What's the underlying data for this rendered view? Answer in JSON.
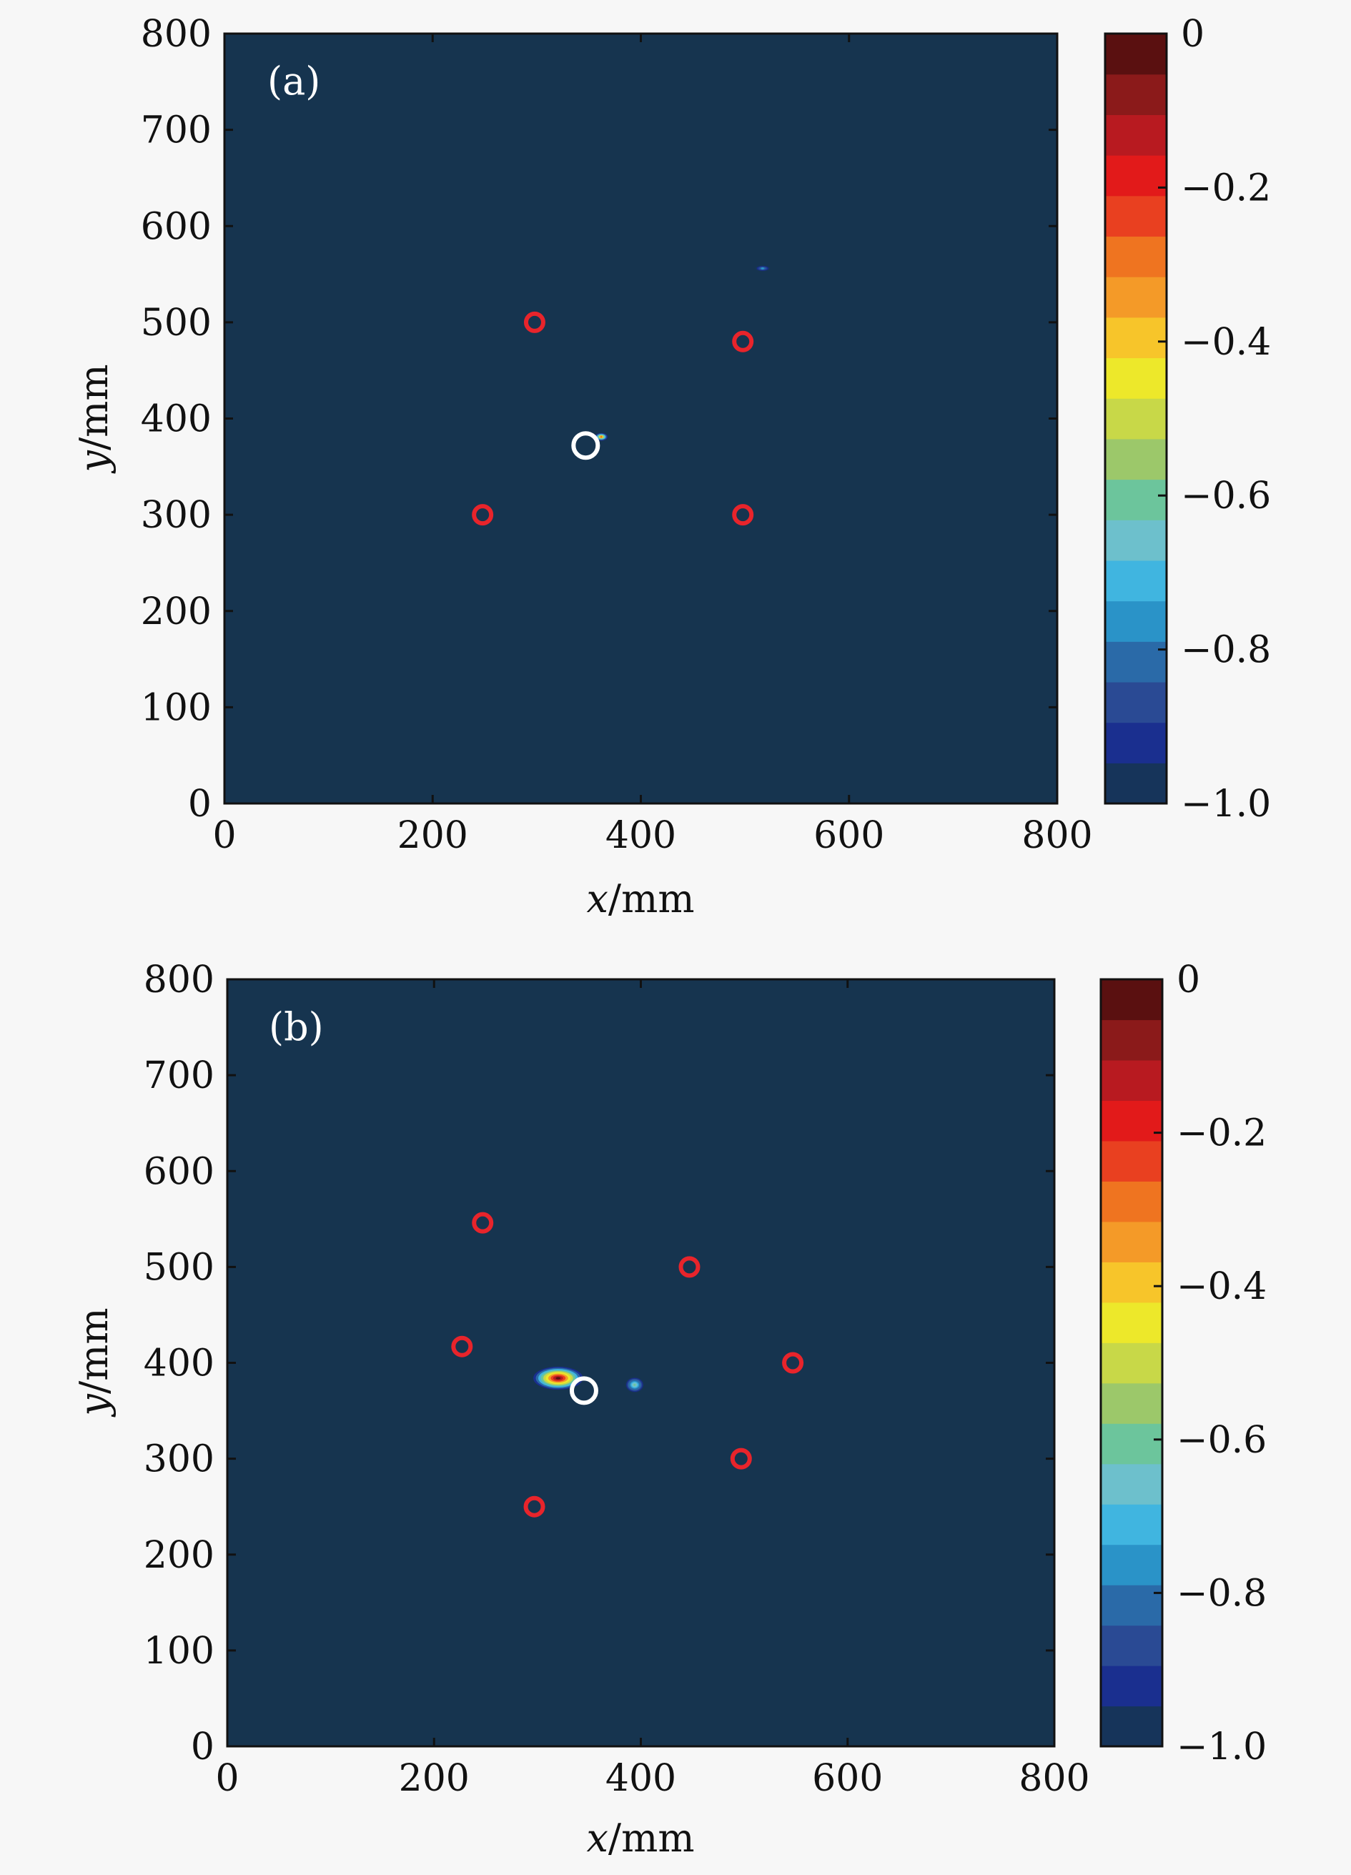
{
  "chart_data": [
    {
      "type": "heatmap",
      "panel_label": "(a)",
      "xlabel_var": "x",
      "xlabel_unit": "/mm",
      "ylabel_var": "y",
      "ylabel_unit": "/mm",
      "xlim": [
        0,
        800
      ],
      "ylim": [
        0,
        800
      ],
      "xticks": [
        0,
        200,
        400,
        600,
        800
      ],
      "yticks": [
        0,
        100,
        200,
        300,
        400,
        500,
        600,
        700,
        800
      ],
      "background_value": -1.0,
      "colorbar": {
        "range": [
          -1.0,
          0
        ],
        "tick_values": [
          0,
          -0.2,
          -0.4,
          -0.6,
          -0.8,
          -1.0
        ],
        "tick_labels": [
          "0",
          "−0.2",
          "−0.4",
          "−0.6",
          "−0.8",
          "−1.0"
        ]
      },
      "sensor_points": [
        {
          "x": 298,
          "y": 500
        },
        {
          "x": 498,
          "y": 480
        },
        {
          "x": 248,
          "y": 300
        },
        {
          "x": 498,
          "y": 300
        }
      ],
      "true_location": {
        "x": 347,
        "y": 372
      },
      "hot_spots": [
        {
          "x": 362,
          "y": 381,
          "peak": -0.3,
          "rx": 6,
          "ry": 4
        },
        {
          "x": 517,
          "y": 556,
          "peak": -0.75,
          "rx": 7,
          "ry": 3
        }
      ]
    },
    {
      "type": "heatmap",
      "panel_label": "(b)",
      "xlabel_var": "x",
      "xlabel_unit": "/mm",
      "ylabel_var": "y",
      "ylabel_unit": "/mm",
      "xlim": [
        0,
        800
      ],
      "ylim": [
        0,
        800
      ],
      "xticks": [
        0,
        200,
        400,
        600,
        800
      ],
      "yticks": [
        0,
        100,
        200,
        300,
        400,
        500,
        600,
        700,
        800
      ],
      "background_value": -1.0,
      "colorbar": {
        "range": [
          -1.0,
          0
        ],
        "tick_values": [
          0,
          -0.2,
          -0.4,
          -0.6,
          -0.8,
          -1.0
        ],
        "tick_labels": [
          "0",
          "−0.2",
          "−0.4",
          "−0.6",
          "−0.8",
          "−1.0"
        ]
      },
      "sensor_points": [
        {
          "x": 247,
          "y": 546
        },
        {
          "x": 447,
          "y": 500
        },
        {
          "x": 227,
          "y": 417
        },
        {
          "x": 547,
          "y": 400
        },
        {
          "x": 497,
          "y": 300
        },
        {
          "x": 297,
          "y": 250
        }
      ],
      "true_location": {
        "x": 345,
        "y": 371
      },
      "hot_spots": [
        {
          "x": 320,
          "y": 384,
          "peak": -0.05,
          "rx": 24,
          "ry": 12
        },
        {
          "x": 394,
          "y": 377,
          "peak": -0.6,
          "rx": 9,
          "ry": 8
        }
      ]
    }
  ],
  "colors": {
    "background": "#16344f",
    "sensor_marker": "#e8242b",
    "true_location_marker": "#ffffff",
    "colormap": [
      "#16345a",
      "#1a2f8f",
      "#2a4a94",
      "#2a6aa8",
      "#2a93c8",
      "#40b5e0",
      "#6dc0cc",
      "#6cc59c",
      "#9cc86a",
      "#c8d848",
      "#ede82a",
      "#f7c52a",
      "#f49a28",
      "#ef7420",
      "#e94020",
      "#e21a1a",
      "#b81a20",
      "#8b1a1a",
      "#5a1010"
    ]
  }
}
